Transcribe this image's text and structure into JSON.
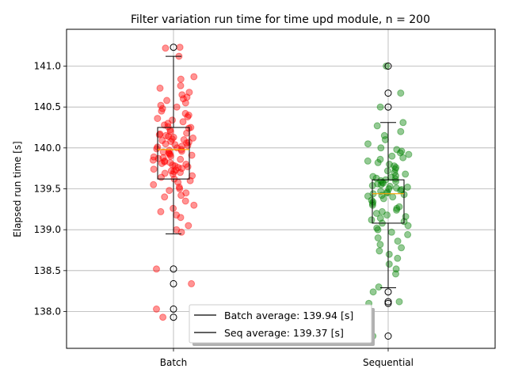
{
  "chart_data": {
    "type": "box",
    "title": "Filter variation run time for time upd module, n = 200",
    "xlabel": "",
    "ylabel": "Elapsed run time [s]",
    "ylim": [
      137.55,
      141.45
    ],
    "yticks": [
      "138.0",
      "138.5",
      "139.0",
      "139.5",
      "140.0",
      "140.5",
      "141.0"
    ],
    "grid": true,
    "categories": [
      "Batch",
      "Sequential"
    ],
    "series": [
      {
        "name": "Batch",
        "color": "#ff0000",
        "median": 139.98,
        "q1": 139.62,
        "q3": 140.25,
        "whisker_low": 138.95,
        "whisker_high": 141.12,
        "outliers": [
          141.23,
          138.52,
          138.34,
          138.03,
          137.93
        ],
        "points": [
          141.23,
          141.22,
          141.12,
          140.87,
          140.84,
          140.76,
          140.73,
          140.68,
          140.65,
          140.62,
          140.6,
          140.58,
          140.55,
          140.52,
          140.5,
          140.48,
          140.45,
          140.42,
          140.4,
          140.38,
          140.36,
          140.34,
          140.32,
          140.3,
          140.28,
          140.26,
          140.25,
          140.24,
          140.22,
          140.2,
          140.18,
          140.17,
          140.16,
          140.15,
          140.14,
          140.13,
          140.12,
          140.11,
          140.1,
          140.09,
          140.08,
          140.07,
          140.06,
          140.05,
          140.04,
          140.03,
          140.02,
          140.01,
          140.0,
          139.99,
          139.98,
          139.97,
          139.96,
          139.95,
          139.94,
          139.93,
          139.92,
          139.91,
          139.9,
          139.89,
          139.88,
          139.87,
          139.86,
          139.85,
          139.84,
          139.83,
          139.82,
          139.81,
          139.8,
          139.79,
          139.78,
          139.77,
          139.76,
          139.75,
          139.74,
          139.73,
          139.72,
          139.71,
          139.7,
          139.69,
          139.68,
          139.66,
          139.64,
          139.62,
          139.6,
          139.58,
          139.55,
          139.52,
          139.5,
          139.48,
          139.45,
          139.42,
          139.4,
          139.35,
          139.3,
          139.26,
          139.22,
          139.18,
          139.15,
          139.05,
          139.0,
          138.97,
          138.52,
          138.34,
          138.03,
          137.93
        ],
        "average_label": "Batch average: 139.94 [s]"
      },
      {
        "name": "Sequential",
        "color": "#008000",
        "median": 139.44,
        "q1": 139.08,
        "q3": 139.61,
        "whisker_low": 138.29,
        "whisker_high": 140.31,
        "outliers": [
          141.0,
          140.67,
          140.5,
          138.24,
          138.12,
          138.1,
          137.7
        ],
        "points": [
          141.0,
          140.67,
          140.5,
          140.31,
          140.27,
          140.2,
          140.15,
          140.1,
          140.05,
          140.0,
          139.98,
          139.96,
          139.94,
          139.92,
          139.9,
          139.88,
          139.86,
          139.84,
          139.82,
          139.8,
          139.78,
          139.76,
          139.74,
          139.72,
          139.7,
          139.68,
          139.66,
          139.65,
          139.64,
          139.63,
          139.62,
          139.61,
          139.6,
          139.59,
          139.58,
          139.57,
          139.56,
          139.55,
          139.54,
          139.53,
          139.52,
          139.51,
          139.5,
          139.49,
          139.48,
          139.47,
          139.46,
          139.45,
          139.44,
          139.43,
          139.42,
          139.41,
          139.4,
          139.38,
          139.36,
          139.34,
          139.32,
          139.3,
          139.28,
          139.26,
          139.24,
          139.22,
          139.2,
          139.18,
          139.16,
          139.14,
          139.12,
          139.1,
          139.08,
          139.05,
          139.02,
          139.0,
          138.97,
          138.94,
          138.9,
          138.86,
          138.82,
          138.78,
          138.74,
          138.7,
          138.65,
          138.58,
          138.52,
          138.46,
          138.3,
          138.24,
          138.12,
          138.1,
          137.7
        ],
        "average_label": "Seq average: 139.37 [s]"
      }
    ],
    "legend": {
      "placement": "lower-center",
      "entries": [
        "Batch average: 139.94 [s]",
        "Seq average: 139.37 [s]"
      ]
    },
    "median_color": "#ffa500"
  }
}
